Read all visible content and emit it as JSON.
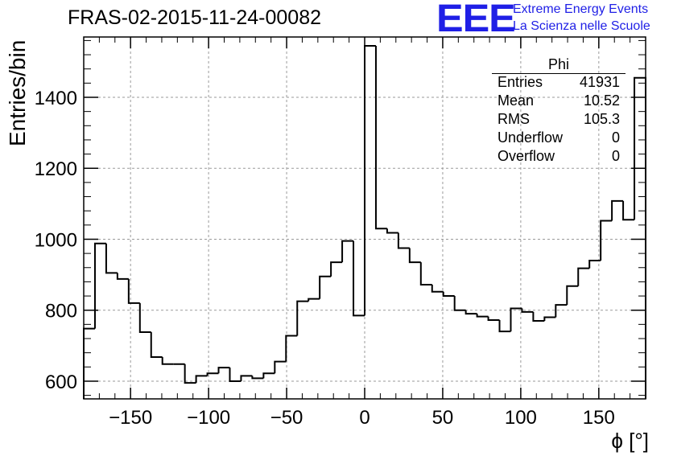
{
  "title": "FRAS-02-2015-11-24-00082",
  "logo": {
    "mark": "EEE",
    "line1": "Extreme Energy Events",
    "line2": "La Scienza nelle Scuole",
    "color": "#1f1fe6"
  },
  "stats": {
    "name": "Phi",
    "rows": [
      {
        "label": "Entries",
        "value": "41931"
      },
      {
        "label": "Mean",
        "value": "10.52"
      },
      {
        "label": "RMS",
        "value": "105.3"
      },
      {
        "label": "Underflow",
        "value": "0"
      },
      {
        "label": "Overflow",
        "value": "0"
      }
    ]
  },
  "chart_data": {
    "type": "bar",
    "style": "step-histogram",
    "title": "FRAS-02-2015-11-24-00082",
    "xlabel": "ϕ [°]",
    "ylabel": "Entries/bin",
    "xlim": [
      -180,
      180
    ],
    "ylim": [
      550,
      1570
    ],
    "bin_width": 7.2,
    "x_ticks": [
      -150,
      -100,
      -50,
      0,
      50,
      100,
      150
    ],
    "x_tick_labels": [
      "−150",
      "−100",
      "−50",
      "0",
      "50",
      "100",
      "150"
    ],
    "y_ticks": [
      600,
      800,
      1000,
      1200,
      1400
    ],
    "y_tick_labels": [
      "600",
      "800",
      "1000",
      "1200",
      "1400"
    ],
    "grid": true,
    "legend": "top-right stats box",
    "values": [
      748,
      988,
      905,
      888,
      820,
      738,
      668,
      648,
      648,
      595,
      615,
      622,
      638,
      600,
      615,
      608,
      622,
      655,
      728,
      825,
      832,
      895,
      935,
      995,
      785,
      1545,
      1030,
      1018,
      975,
      935,
      872,
      852,
      840,
      800,
      790,
      782,
      772,
      740,
      805,
      795,
      770,
      780,
      815,
      868,
      918,
      940,
      1052,
      1108,
      1055,
      1455
    ]
  }
}
